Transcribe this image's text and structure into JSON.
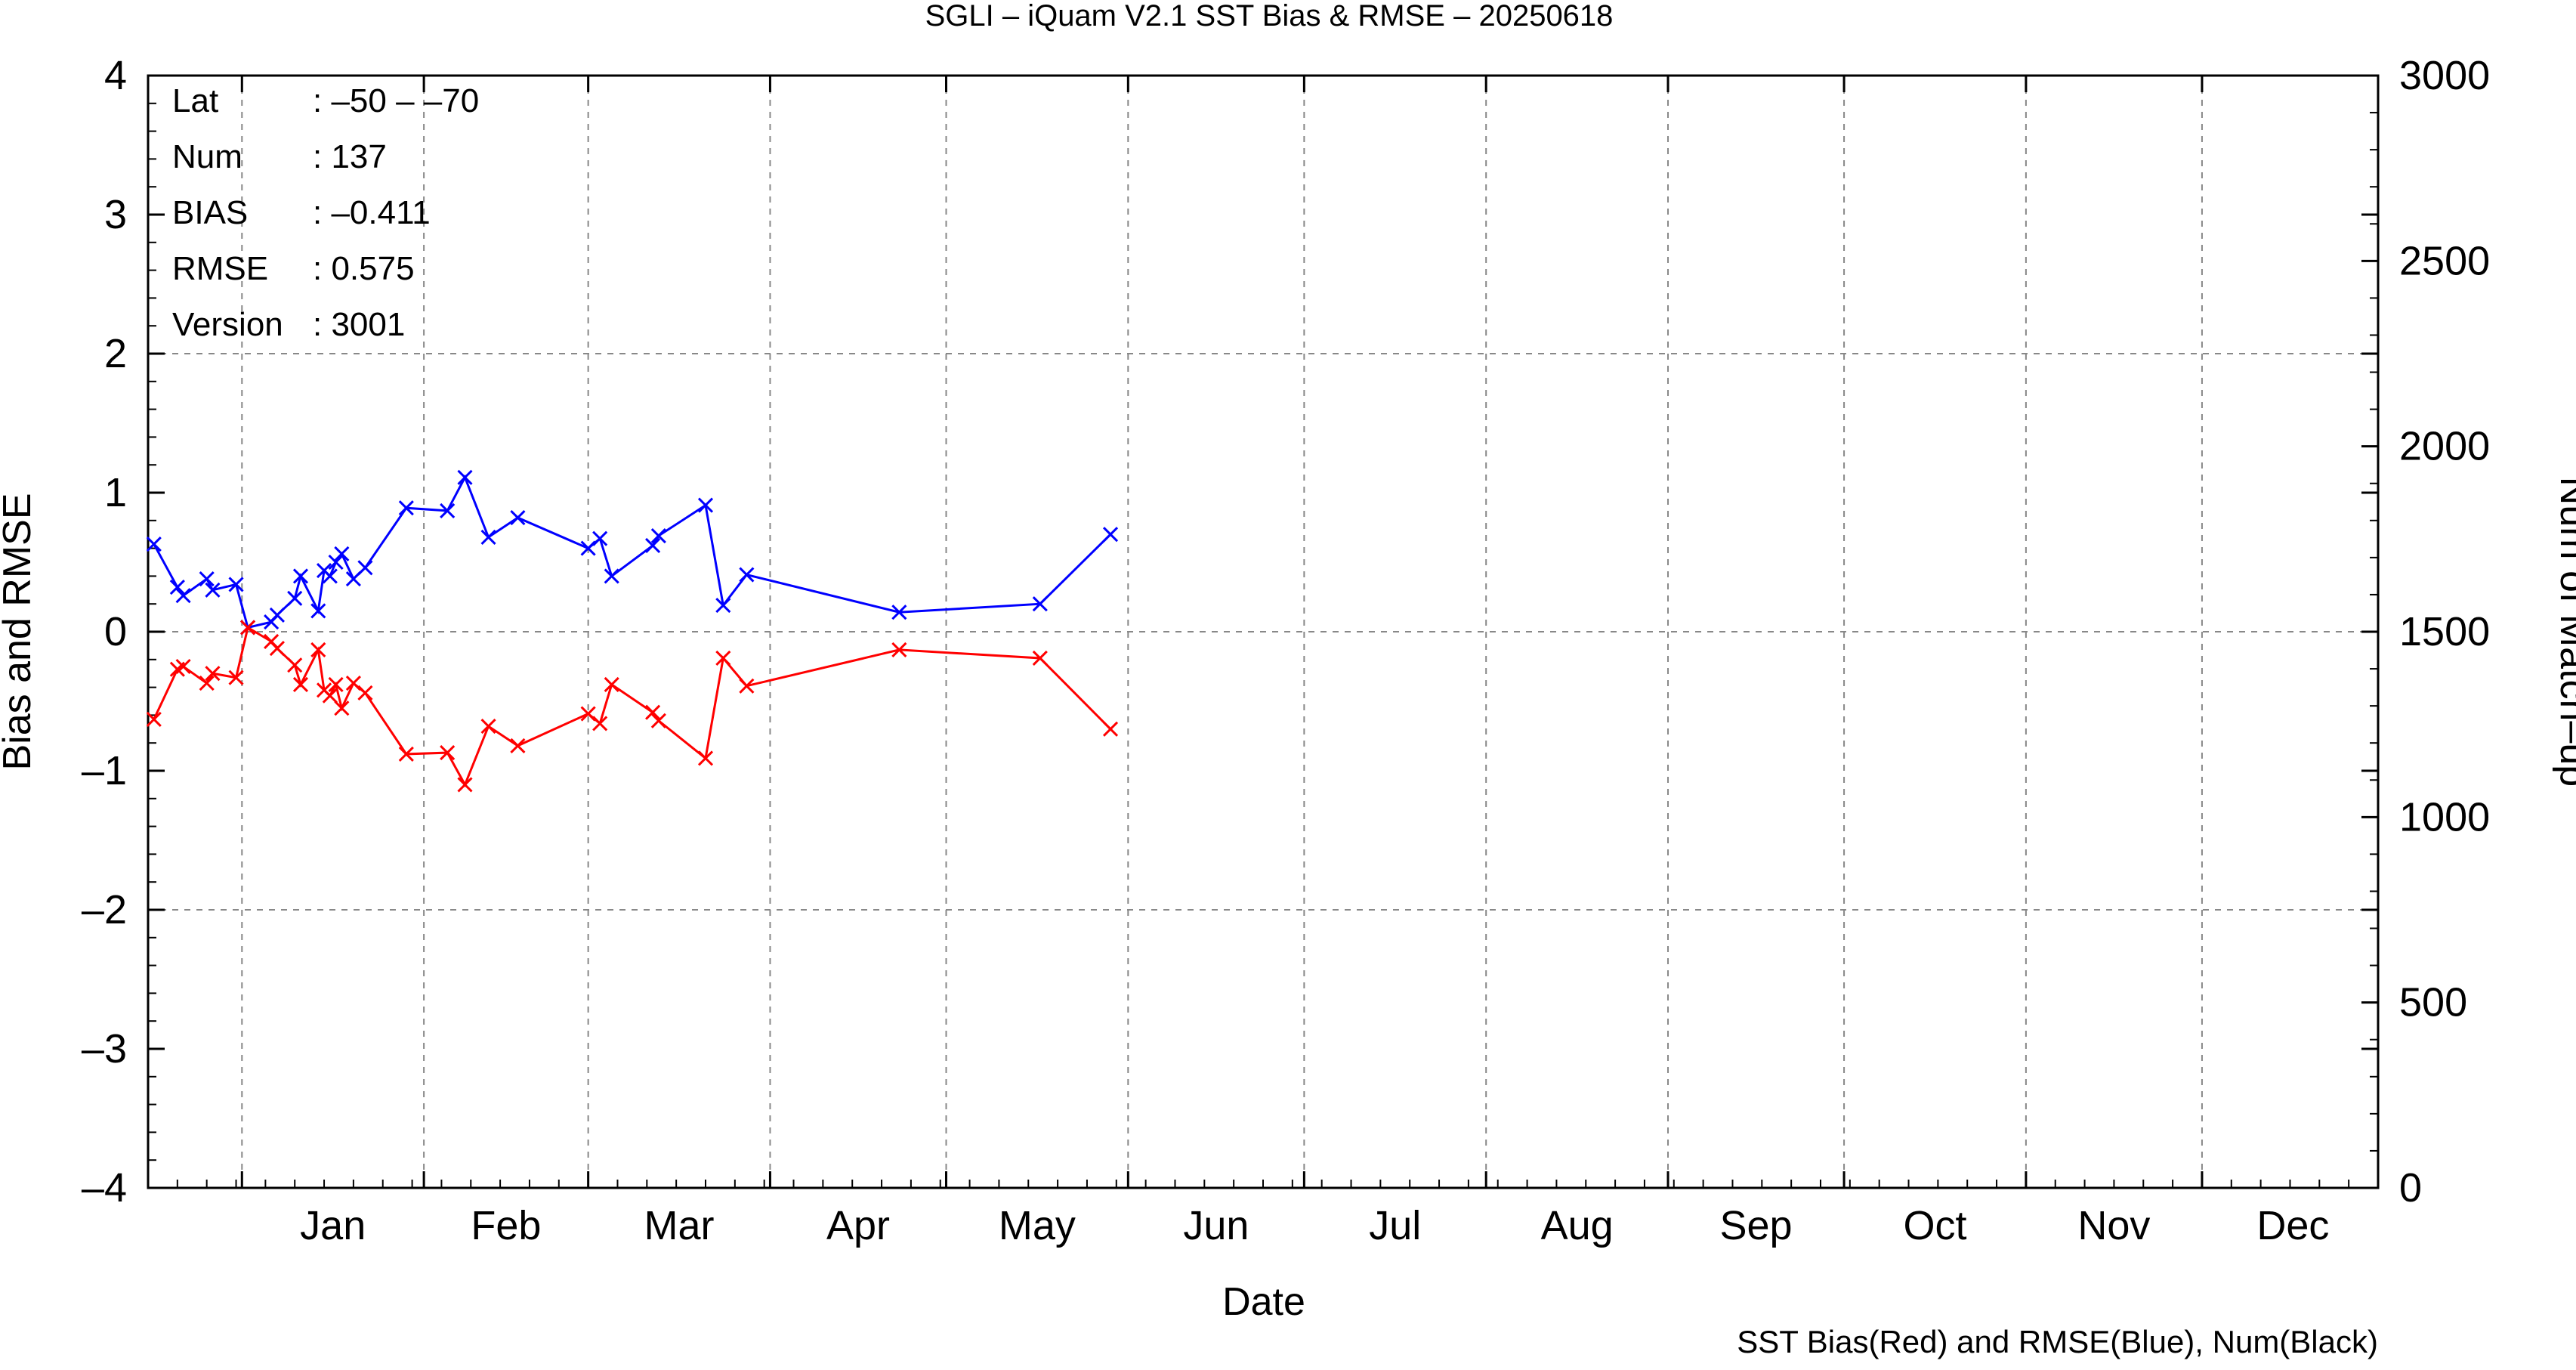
{
  "colors": {
    "bias": "#ff0000",
    "rmse": "#0000ff",
    "grid": "#888888",
    "axis": "#000000"
  },
  "chart_data": {
    "type": "line",
    "title": "SGLI – iQuam V2.1 SST Bias & RMSE  – 20250618",
    "xlabel": "Date",
    "ylabel": "Bias and RMSE",
    "y2label": "Num of Match–up",
    "ylim": [
      -4,
      4
    ],
    "y2lim": [
      0,
      3000
    ],
    "y_ticks": [
      "–4",
      "–3",
      "–2",
      "–1",
      "0",
      "1",
      "2",
      "3",
      "4"
    ],
    "y2_ticks": [
      "0",
      "500",
      "1000",
      "1500",
      "2000",
      "2500",
      "3000"
    ],
    "x_range": [
      "2024-12-16",
      "2025-12-31"
    ],
    "month_labels": [
      "Jan",
      "Feb",
      "Mar",
      "Apr",
      "May",
      "Jun",
      "Jul",
      "Aug",
      "Sep",
      "Oct",
      "Nov",
      "Dec"
    ],
    "grid": true,
    "footnote": "SST Bias(Red) and RMSE(Blue), Num(Black)",
    "info_box": [
      {
        "key": "Lat",
        "value": ": –50 – –70"
      },
      {
        "key": "Num",
        "value": ": 137"
      },
      {
        "key": "BIAS",
        "value": ": –0.411"
      },
      {
        "key": "RMSE",
        "value": ": 0.575"
      },
      {
        "key": "Version",
        "value": ": 3001"
      }
    ],
    "series": [
      {
        "color": "#0000ff",
        "marker": "x",
        "points": [
          [
            "2024-12-17",
            0.63
          ],
          [
            "2024-12-21",
            0.32
          ],
          [
            "2024-12-22",
            0.26
          ],
          [
            "2024-12-26",
            0.38
          ],
          [
            "2024-12-27",
            0.3
          ],
          [
            "2024-12-31",
            0.34
          ],
          [
            "2025-01-02",
            0.03
          ],
          [
            "2025-01-06",
            0.07
          ],
          [
            "2025-01-07",
            0.12
          ],
          [
            "2025-01-10",
            0.24
          ],
          [
            "2025-01-11",
            0.4
          ],
          [
            "2025-01-14",
            0.15
          ],
          [
            "2025-01-15",
            0.44
          ],
          [
            "2025-01-16",
            0.4
          ],
          [
            "2025-01-17",
            0.5
          ],
          [
            "2025-01-18",
            0.56
          ],
          [
            "2025-01-20",
            0.38
          ],
          [
            "2025-01-22",
            0.46
          ],
          [
            "2025-01-29",
            0.89
          ],
          [
            "2025-02-05",
            0.87
          ],
          [
            "2025-02-08",
            1.11
          ],
          [
            "2025-02-12",
            0.68
          ],
          [
            "2025-02-17",
            0.82
          ],
          [
            "2025-03-01",
            0.6
          ],
          [
            "2025-03-03",
            0.67
          ],
          [
            "2025-03-05",
            0.4
          ],
          [
            "2025-03-12",
            0.62
          ],
          [
            "2025-03-13",
            0.69
          ],
          [
            "2025-03-21",
            0.91
          ],
          [
            "2025-03-24",
            0.19
          ],
          [
            "2025-03-28",
            0.41
          ],
          [
            "2025-04-23",
            0.14
          ],
          [
            "2025-05-17",
            0.2
          ],
          [
            "2025-05-29",
            0.7
          ]
        ]
      },
      {
        "color": "#ff0000",
        "marker": "x",
        "points": [
          [
            "2024-12-17",
            -0.63
          ],
          [
            "2024-12-21",
            -0.27
          ],
          [
            "2024-12-22",
            -0.25
          ],
          [
            "2024-12-26",
            -0.37
          ],
          [
            "2024-12-27",
            -0.3
          ],
          [
            "2024-12-31",
            -0.33
          ],
          [
            "2025-01-02",
            0.03
          ],
          [
            "2025-01-06",
            -0.07
          ],
          [
            "2025-01-07",
            -0.12
          ],
          [
            "2025-01-10",
            -0.24
          ],
          [
            "2025-01-11",
            -0.38
          ],
          [
            "2025-01-14",
            -0.13
          ],
          [
            "2025-01-15",
            -0.42
          ],
          [
            "2025-01-16",
            -0.46
          ],
          [
            "2025-01-17",
            -0.38
          ],
          [
            "2025-01-18",
            -0.55
          ],
          [
            "2025-01-20",
            -0.37
          ],
          [
            "2025-01-22",
            -0.44
          ],
          [
            "2025-01-29",
            -0.88
          ],
          [
            "2025-02-05",
            -0.87
          ],
          [
            "2025-02-08",
            -1.1
          ],
          [
            "2025-02-12",
            -0.68
          ],
          [
            "2025-02-17",
            -0.82
          ],
          [
            "2025-03-01",
            -0.59
          ],
          [
            "2025-03-03",
            -0.66
          ],
          [
            "2025-03-05",
            -0.38
          ],
          [
            "2025-03-12",
            -0.58
          ],
          [
            "2025-03-13",
            -0.64
          ],
          [
            "2025-03-21",
            -0.91
          ],
          [
            "2025-03-24",
            -0.19
          ],
          [
            "2025-03-28",
            -0.39
          ],
          [
            "2025-04-23",
            -0.13
          ],
          [
            "2025-05-17",
            -0.19
          ],
          [
            "2025-05-29",
            -0.7
          ]
        ]
      }
    ]
  }
}
